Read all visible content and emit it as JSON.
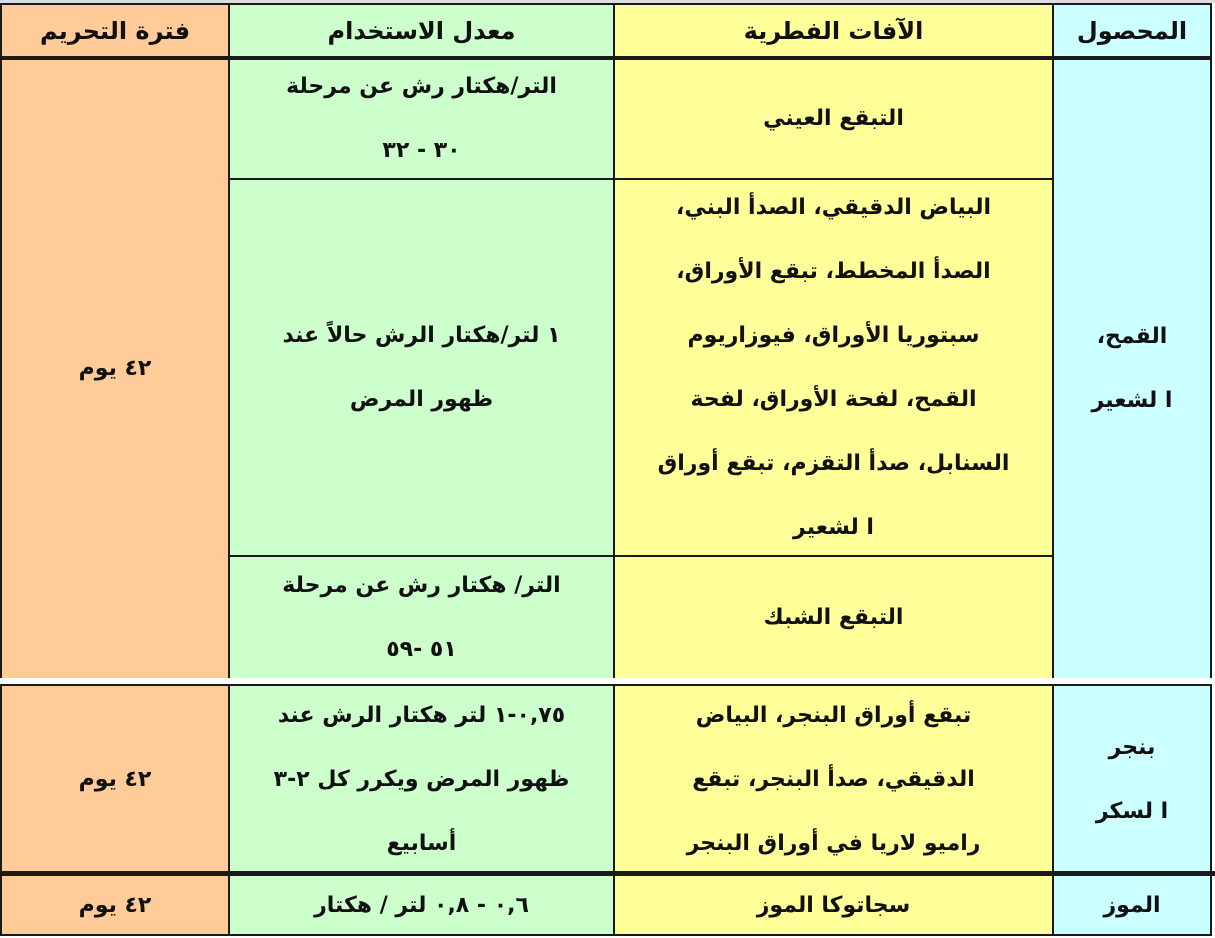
{
  "colors": {
    "period": "#FFCC99",
    "rate": "#CCFFCC",
    "disease": "#FFFF99",
    "crop": "#CCFFFF"
  },
  "header": {
    "crop": "المحصول",
    "diseases": "الآفات الفطرية",
    "rate": "معدل الاستخدام",
    "period": "فترة التحريم"
  },
  "rows": [
    {
      "crop": [
        "القمح،",
        "ا لشعير"
      ],
      "period": "٤٢ يوم",
      "sub": [
        {
          "disease": [
            "التبقع  العيني"
          ],
          "rate": [
            "التر/هكتار رش عن مرحلة",
            "٣٠ - ٣٢"
          ]
        },
        {
          "disease": [
            "البياض الدقيقي، الصدأ البني،",
            "الصدأ المخطط، تبقع الأوراق،",
            "سبتوريا الأوراق، فيوزاريوم",
            "القمح، لفحة الأوراق، لفحة",
            "السنابل، صدأ التقزم، تبقع أوراق",
            "ا لشعير"
          ],
          "rate": [
            "١ لتر/هكتار الرش حالاً عند",
            "ظهور المرض"
          ]
        },
        {
          "disease": [
            "التبقع  الشبك"
          ],
          "rate": [
            "التر/ هكتار رش عن مرحلة",
            "٥١ -٥٩"
          ]
        }
      ]
    },
    {
      "crop": [
        "بنجر",
        "ا لسكر"
      ],
      "period": "٤٢ يوم",
      "disease": [
        "تبقع أوراق البنجر، البياض",
        "الدقيقي، صدأ البنجر، تبقع",
        "راميو لاريا في  أوراق البنجر"
      ],
      "rate": [
        "٠,٧٥-١ لتر هكتار الرش عند",
        "ظهور المرض ويكرر كل ٢-٣",
        "أسابيع"
      ]
    },
    {
      "crop": [
        "الموز"
      ],
      "period": "٤٢ يوم",
      "disease": [
        "سجاتوكا  الموز"
      ],
      "rate": [
        "٠,٦ - ٠,٨ لتر / هكتار"
      ]
    }
  ]
}
